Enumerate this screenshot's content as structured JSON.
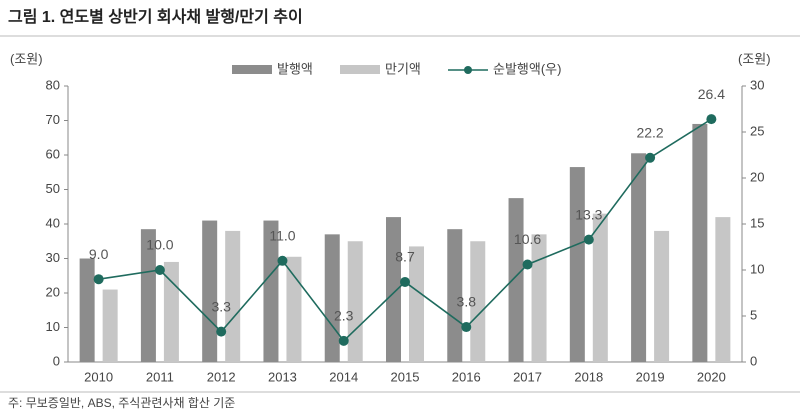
{
  "chart_data": {
    "type": "bar",
    "title": "그림 1. 연도별 상반기 회사채 발행/만기 추이",
    "ylabel": "(조원)",
    "y2label": "(조원)",
    "note": "주: 무보증일반, ABS, 주식관련사채 합산 기준",
    "categories": [
      "2010",
      "2011",
      "2012",
      "2013",
      "2014",
      "2015",
      "2016",
      "2017",
      "2018",
      "2019",
      "2020"
    ],
    "series": [
      {
        "name": "발행액",
        "type": "bar",
        "color": "#8c8c8c",
        "values": [
          30,
          38.5,
          41,
          41,
          37,
          42,
          38.5,
          47.5,
          56.5,
          60.5,
          69
        ]
      },
      {
        "name": "만기액",
        "type": "bar",
        "color": "#c6c6c6",
        "values": [
          21,
          29,
          38,
          30.5,
          35,
          33.5,
          35,
          37,
          43,
          38,
          42
        ]
      },
      {
        "name": "순발행액(우)",
        "type": "line",
        "axis": "y2",
        "color": "#1f6b5e",
        "values": [
          9.0,
          10.0,
          3.3,
          11.0,
          2.3,
          8.7,
          3.8,
          10.6,
          13.3,
          22.2,
          26.4
        ],
        "value_labels": [
          "9.0",
          "10.0",
          "3.3",
          "11.0",
          "2.3",
          "8.7",
          "3.8",
          "10.6",
          "13.3",
          "22.2",
          "26.4"
        ]
      }
    ],
    "ylim": [
      0,
      80
    ],
    "yticks": [
      0,
      10,
      20,
      30,
      40,
      50,
      60,
      70,
      80
    ],
    "y2lim": [
      0,
      30
    ],
    "y2ticks": [
      0,
      5,
      10,
      15,
      20,
      25,
      30
    ],
    "legend": "top"
  }
}
